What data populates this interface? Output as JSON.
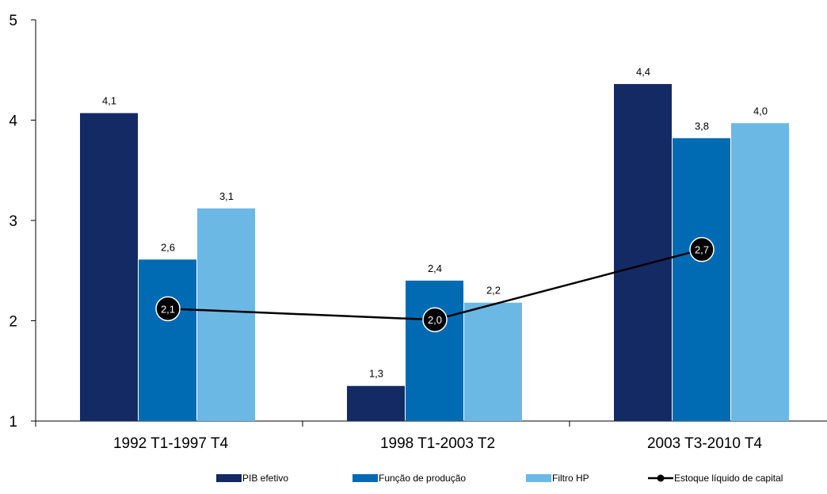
{
  "chart_data": {
    "type": "bar",
    "categories": [
      "1992 T1-1997 T4",
      "1998 T1-2003 T2",
      "2003 T3-2010 T4"
    ],
    "series": [
      {
        "name": "PIB efetivo",
        "values": [
          4.07,
          1.35,
          4.36
        ],
        "labels": [
          "4,1",
          "1,3",
          "4,4"
        ],
        "color": "#142a64",
        "kind": "bar"
      },
      {
        "name": "Função de produção",
        "values": [
          2.61,
          2.4,
          3.82
        ],
        "labels": [
          "2,6",
          "2,4",
          "3,8"
        ],
        "color": "#006bb2",
        "kind": "bar"
      },
      {
        "name": "Filtro HP",
        "values": [
          3.12,
          2.18,
          3.97
        ],
        "labels": [
          "3,1",
          "2,2",
          "4,0"
        ],
        "color": "#6bb8e4",
        "kind": "bar"
      },
      {
        "name": "Estoque líquido de capital",
        "values": [
          2.12,
          2.01,
          2.71
        ],
        "labels": [
          "2,1",
          "2,0",
          "2,7"
        ],
        "color": "#000000",
        "kind": "line"
      }
    ],
    "yticks": [
      "1",
      "2",
      "3",
      "4",
      "5"
    ],
    "ylim": [
      1,
      5
    ],
    "legend_position": "bottom",
    "grid": false
  }
}
